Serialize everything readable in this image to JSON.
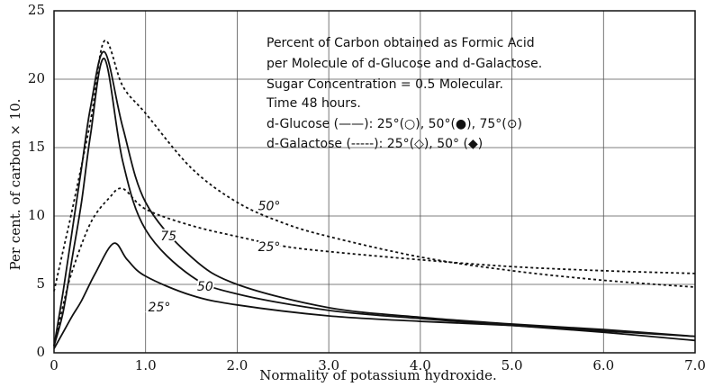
{
  "chart_data": {
    "type": "line",
    "xlabel": "Normality of potassium hydroxide.",
    "ylabel": "Per cent. of carbon × 10.",
    "xlim": [
      0,
      7.0
    ],
    "ylim": [
      0,
      25
    ],
    "xticks": [
      0,
      {
        "value": 1.0,
        "label": "1.0"
      },
      {
        "value": 2.0,
        "label": "2.0"
      },
      {
        "value": 3.0,
        "label": "3.0"
      },
      {
        "value": 4.0,
        "label": "4.0"
      },
      {
        "value": 5.0,
        "label": "5.0"
      },
      {
        "value": 6.0,
        "label": "6.0"
      },
      {
        "value": 7.0,
        "label": "7.0"
      }
    ],
    "yticks": [
      0,
      5,
      10,
      15,
      20,
      25
    ],
    "grid": true,
    "legend_text": [
      "Percent of Carbon obtained as Formic Acid",
      "per Molecule of d-Glucose and d-Galactose.",
      "Sugar Concentration = 0.5 Molecular.",
      "Time 48 hours.",
      "d-Glucose (——): 25°(○), 50°(●), 75°(⊙)",
      "d-Galactose (-----): 25°(◇), 50° (◆)"
    ],
    "series": [
      {
        "name": "25°",
        "color": "#111111",
        "dashed": false,
        "x": [
          0,
          0.1,
          0.2,
          0.3,
          0.45,
          0.65,
          0.8,
          1.0,
          1.5,
          2.0,
          3.0,
          4.0,
          5.0,
          6.0,
          7.0
        ],
        "values": [
          0.3,
          1.5,
          2.7,
          3.8,
          5.8,
          8.0,
          6.8,
          5.6,
          4.2,
          3.5,
          2.7,
          2.3,
          2.0,
          1.6,
          1.2
        ]
      },
      {
        "name": "50",
        "color": "#111111",
        "dashed": false,
        "x": [
          0,
          0.1,
          0.2,
          0.3,
          0.4,
          0.55,
          0.75,
          1.0,
          1.5,
          2.0,
          3.0,
          4.0,
          5.0,
          6.0,
          7.0
        ],
        "values": [
          0.5,
          3,
          7,
          11,
          16,
          21.5,
          14,
          9,
          5.6,
          4.3,
          3.1,
          2.5,
          2.0,
          1.5,
          0.9
        ]
      },
      {
        "name": "75",
        "color": "#111111",
        "dashed": false,
        "x": [
          0,
          0.1,
          0.2,
          0.3,
          0.4,
          0.55,
          0.75,
          1.0,
          1.5,
          2.0,
          3.0,
          4.0,
          5.0,
          6.0,
          7.0
        ],
        "values": [
          0.5,
          4.5,
          9,
          13.5,
          18,
          22,
          16.5,
          11,
          7,
          5,
          3.3,
          2.6,
          2.1,
          1.7,
          1.2
        ]
      },
      {
        "name": "25°",
        "color": "#111111",
        "dashed": true,
        "x": [
          0,
          0.1,
          0.2,
          0.4,
          0.6,
          0.75,
          1.0,
          1.5,
          2.0,
          2.5,
          3.0,
          4.0,
          5.0,
          6.0,
          7.0
        ],
        "values": [
          0.5,
          3.5,
          6,
          9.5,
          11.3,
          12,
          10.5,
          9.3,
          8.5,
          7.8,
          7.4,
          6.8,
          6.3,
          6.0,
          5.8
        ]
      },
      {
        "name": "50°",
        "color": "#111111",
        "dashed": true,
        "x": [
          0,
          0.1,
          0.2,
          0.4,
          0.55,
          0.75,
          1.0,
          1.5,
          2.0,
          2.5,
          3.0,
          4.0,
          5.0,
          6.0,
          7.0
        ],
        "values": [
          4.5,
          7.5,
          10.5,
          17,
          22.8,
          19.5,
          17.5,
          13.5,
          11,
          9.5,
          8.5,
          7,
          6,
          5.3,
          4.8
        ]
      }
    ]
  }
}
